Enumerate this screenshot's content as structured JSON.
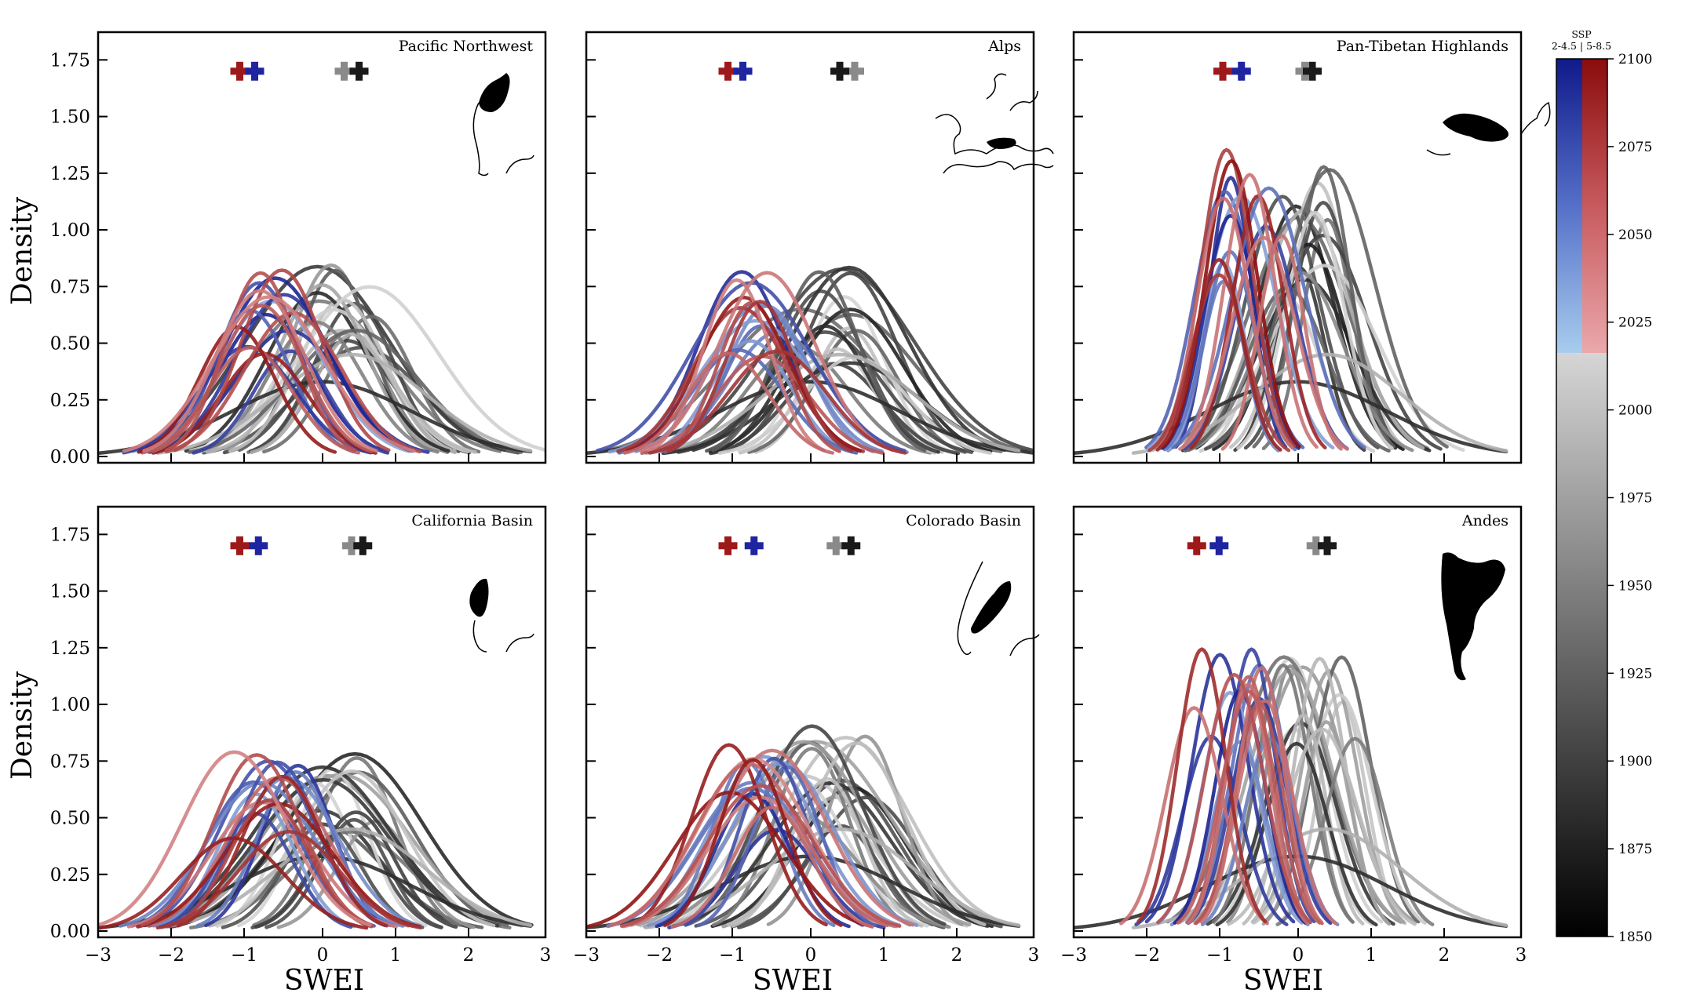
{
  "figure": {
    "xlabel": "SWEI",
    "ylabel": "Density",
    "xticks": [
      "−3",
      "−2",
      "−1",
      "0",
      "1",
      "2",
      "3"
    ],
    "yticks": [
      "0.00",
      "0.25",
      "0.50",
      "0.75",
      "1.00",
      "1.25",
      "1.50",
      "1.75"
    ]
  },
  "colorbar": {
    "title_line1": "SSP",
    "title_line2": "2-4.5 | 5-8.5",
    "ticks": [
      "1850",
      "1875",
      "1900",
      "1925",
      "1950",
      "1975",
      "2000",
      "2025",
      "2050",
      "2075",
      "2100"
    ]
  },
  "colors": {
    "hist_dark": "#1a1a1a",
    "hist_light": "#d6d6d6",
    "ssp245_dark": "#1c2390",
    "ssp245_light": "#a8c8ea",
    "ssp585_dark": "#8e1111",
    "ssp585_light": "#e8a8aa"
  },
  "chart_data": [
    {
      "type": "line",
      "title": "Pacific Northwest",
      "xlabel": "SWEI",
      "ylabel": "Density",
      "xlim": [
        -3,
        3
      ],
      "ylim": [
        0,
        1.9
      ],
      "map_icon": "pacific-northwest-map",
      "markers": {
        "ssp585_mean": -1.1,
        "ssp245_mean": -0.9,
        "hist_light_mean": 0.3,
        "hist_dark_mean": 0.5
      }
    },
    {
      "type": "line",
      "title": "Alps",
      "xlabel": "SWEI",
      "ylabel": "Density",
      "xlim": [
        -3,
        3
      ],
      "ylim": [
        0,
        1.9
      ],
      "map_icon": "alps-map",
      "markers": {
        "ssp585_mean": -1.1,
        "ssp245_mean": -0.9,
        "hist_light_mean": 0.6,
        "hist_dark_mean": 0.4
      }
    },
    {
      "type": "line",
      "title": "Pan-Tibetan Highlands",
      "xlabel": "SWEI",
      "ylabel": "Density",
      "xlim": [
        -3,
        3
      ],
      "ylim": [
        0,
        1.9
      ],
      "map_icon": "pan-tibetan-map",
      "markers": {
        "ssp585_mean": -1.0,
        "ssp245_mean": -0.75,
        "hist_light_mean": 0.1,
        "hist_dark_mean": 0.2
      }
    },
    {
      "type": "line",
      "title": "California Basin",
      "xlabel": "SWEI",
      "ylabel": "Density",
      "xlim": [
        -3,
        3
      ],
      "ylim": [
        0,
        1.9
      ],
      "map_icon": "california-map",
      "markers": {
        "ssp585_mean": -1.1,
        "ssp245_mean": -0.85,
        "hist_light_mean": 0.4,
        "hist_dark_mean": 0.55
      }
    },
    {
      "type": "line",
      "title": "Colorado Basin",
      "xlabel": "SWEI",
      "ylabel": "Density",
      "xlim": [
        -3,
        3
      ],
      "ylim": [
        0,
        1.9
      ],
      "map_icon": "colorado-map",
      "markers": {
        "ssp585_mean": -1.1,
        "ssp245_mean": -0.75,
        "hist_light_mean": 0.35,
        "hist_dark_mean": 0.55
      }
    },
    {
      "type": "line",
      "title": "Andes",
      "xlabel": "SWEI",
      "ylabel": "Density",
      "xlim": [
        -3,
        3
      ],
      "ylim": [
        0,
        1.9
      ],
      "map_icon": "andes-map",
      "markers": {
        "ssp585_mean": -1.35,
        "ssp245_mean": -1.05,
        "hist_light_mean": 0.25,
        "hist_dark_mean": 0.4
      }
    }
  ]
}
